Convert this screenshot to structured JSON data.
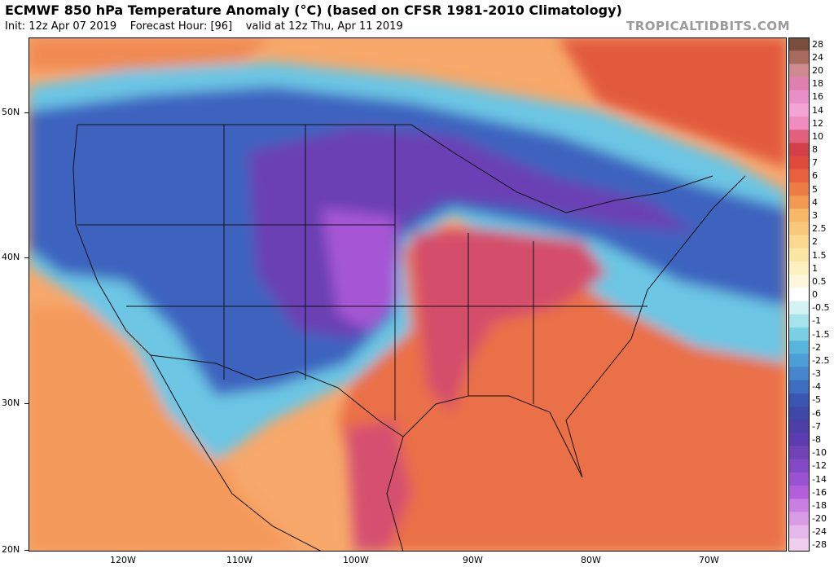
{
  "header": {
    "title": "ECMWF 850 hPa Temperature Anomaly (°C) (based on CFSR 1981-2010 Climatology)",
    "init": "Init: 12z Apr 07 2019",
    "forecast_hour": "Forecast Hour: [96]",
    "valid": "valid at 12z Thu, Apr 11 2019",
    "brand": "TROPICALTIDBITS.COM"
  },
  "map": {
    "lat_labels": [
      "50N",
      "40N",
      "30N",
      "20N"
    ],
    "lon_labels": [
      "120W",
      "110W",
      "100W",
      "90W",
      "80W",
      "70W"
    ]
  },
  "colorbar": {
    "labels": [
      "28",
      "24",
      "20",
      "18",
      "16",
      "14",
      "12",
      "10",
      "8",
      "7",
      "6",
      "5",
      "4",
      "3",
      "2.5",
      "2",
      "1.5",
      "1",
      "0.5",
      "0",
      "-0.5",
      "-1",
      "-1.5",
      "-2",
      "-2.5",
      "-3",
      "-4",
      "-5",
      "-6",
      "-7",
      "-8",
      "-10",
      "-12",
      "-14",
      "-16",
      "-18",
      "-20",
      "-24",
      "-28"
    ],
    "colors": [
      "#7a4e3c",
      "#a96b5e",
      "#cf8a8f",
      "#de7fae",
      "#e98ec8",
      "#f3a3d6",
      "#f08cc0",
      "#e0607e",
      "#d4404a",
      "#e04a3a",
      "#e8603c",
      "#ee7d44",
      "#f39a52",
      "#f7b867",
      "#f9c97a",
      "#fbd98e",
      "#fce6a3",
      "#fdf1bf",
      "#fdf8db",
      "#ffffff",
      "#d4f2f4",
      "#a6e4ec",
      "#7ad0e4",
      "#58b6dd",
      "#4c9ed6",
      "#4586cc",
      "#3d6ec2",
      "#3a56b2",
      "#3e48a8",
      "#4c3fa7",
      "#5c3cb0",
      "#7043b8",
      "#8348c5",
      "#9a52d2",
      "#b35fdc",
      "#c97ee2",
      "#d99be6",
      "#e6b7ea",
      "#f0cfee"
    ]
  }
}
